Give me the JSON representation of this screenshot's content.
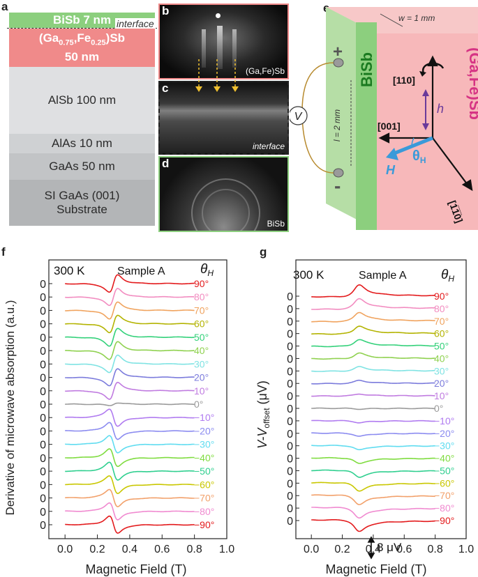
{
  "panel_labels": {
    "a": "a",
    "b": "b",
    "c": "c",
    "d": "d",
    "e": "e",
    "f": "f",
    "g": "g"
  },
  "stack": {
    "interface_label": "interface",
    "layers": [
      {
        "label": "BiSb 7 nm",
        "color": "#8ccf7e"
      },
      {
        "label": "(Ga0.75,Fe0.25)Sb 50 nm",
        "color": "#f08a8a"
      },
      {
        "label": "AlSb 100 nm",
        "color": "#dfe0e2"
      },
      {
        "label": "AlAs 10 nm",
        "color": "#cfd1d3"
      },
      {
        "label": "GaAs 50 nm",
        "color": "#c2c4c6"
      },
      {
        "label": "SI GaAs (001) Substrate",
        "color": "#b3b5b7"
      }
    ],
    "gafesb": {
      "main": "(Ga",
      "sub1": "0.75",
      "mid": ",Fe",
      "sub2": "0.25",
      "end": ")Sb",
      "thickness": "50 nm"
    },
    "substrate": {
      "line1": "SI GaAs (001)",
      "line2": "Substrate"
    }
  },
  "rheed": {
    "b_caption": "(Ga,Fe)Sb",
    "c_caption": "interface",
    "d_caption": "BiSb"
  },
  "device": {
    "width_label": "w = 1 mm",
    "length_label": "l = 2 mm",
    "bisb_label": "BiSb",
    "gafesb_label": "(Ga,Fe)Sb",
    "dir_110": "[110]",
    "dir_001": "[001]",
    "dir_1m10": "[1̅1̅0]",
    "h_label": "h",
    "H_label": "H",
    "theta_label": "θ",
    "theta_sub": "H",
    "voltmeter": "V",
    "plus": "+",
    "minus": "-"
  },
  "chart_data": [
    {
      "panel": "f",
      "type": "line",
      "title": "300 K",
      "subtitle": "Sample A",
      "xlabel": "Magnetic Field (T)",
      "ylabel": "Derivative of microwave absorption (a.u.)",
      "xlim": [
        -0.1,
        1.0
      ],
      "xticks": [
        "0.0",
        "0.2",
        "0.4",
        "0.6",
        "0.8",
        "1.0"
      ],
      "legend_title": "θ",
      "legend_title_sub": "H",
      "zero_label": "0",
      "resonance_field_T": 0.3,
      "series": [
        {
          "name": "90°",
          "color": "#e31a1c"
        },
        {
          "name": "80°",
          "color": "#f28cc0"
        },
        {
          "name": "70°",
          "color": "#f0a35e"
        },
        {
          "name": "60°",
          "color": "#b3b300"
        },
        {
          "name": "50°",
          "color": "#33d17a"
        },
        {
          "name": "40°",
          "color": "#8fd14f"
        },
        {
          "name": "30°",
          "color": "#7fe3e3"
        },
        {
          "name": "20°",
          "color": "#7b7bdc"
        },
        {
          "name": "10°",
          "color": "#c07be0"
        },
        {
          "name": "0°",
          "color": "#9a9a9a"
        },
        {
          "name": "−10°",
          "color": "#b07bf0"
        },
        {
          "name": "−20°",
          "color": "#8b8bf0"
        },
        {
          "name": "−30°",
          "color": "#5fdcf0"
        },
        {
          "name": "−40°",
          "color": "#7fdc3f"
        },
        {
          "name": "−50°",
          "color": "#2fcf8f"
        },
        {
          "name": "−60°",
          "color": "#c9c700"
        },
        {
          "name": "−70°",
          "color": "#f2a06a"
        },
        {
          "name": "−80°",
          "color": "#f08ad0"
        },
        {
          "name": "−90°",
          "color": "#e31a1c"
        }
      ]
    },
    {
      "panel": "g",
      "type": "line",
      "title": "300 K",
      "subtitle": "Sample A",
      "xlabel": "Magnetic Field (T)",
      "ylabel_main": "V-V",
      "ylabel_sub": "offset",
      "ylabel_unit": " (μV)",
      "xlim": [
        -0.1,
        1.0
      ],
      "xticks": [
        "0.0",
        "0.2",
        "0.4",
        "0.6",
        "0.8",
        "1.0"
      ],
      "legend_title": "θ",
      "legend_title_sub": "H",
      "zero_label": "0",
      "scale_bar": "8 μV",
      "resonance_field_T": 0.3,
      "series": [
        {
          "name": "90°",
          "color": "#e31a1c"
        },
        {
          "name": "80°",
          "color": "#f28cc0"
        },
        {
          "name": "70°",
          "color": "#f0a35e"
        },
        {
          "name": "60°",
          "color": "#b3b300"
        },
        {
          "name": "50°",
          "color": "#33d17a"
        },
        {
          "name": "40°",
          "color": "#8fd14f"
        },
        {
          "name": "30°",
          "color": "#7fe3e3"
        },
        {
          "name": "20°",
          "color": "#7b7bdc"
        },
        {
          "name": "10°",
          "color": "#c07be0"
        },
        {
          "name": "0°",
          "color": "#9a9a9a"
        },
        {
          "name": "−10°",
          "color": "#b07bf0"
        },
        {
          "name": "−20°",
          "color": "#8b8bf0"
        },
        {
          "name": "−30°",
          "color": "#5fdcf0"
        },
        {
          "name": "−40°",
          "color": "#7fdc3f"
        },
        {
          "name": "−50°",
          "color": "#2fcf8f"
        },
        {
          "name": "−60°",
          "color": "#c9c700"
        },
        {
          "name": "−70°",
          "color": "#f2a06a"
        },
        {
          "name": "−80°",
          "color": "#f08ad0"
        },
        {
          "name": "−90°",
          "color": "#e31a1c"
        }
      ]
    }
  ]
}
